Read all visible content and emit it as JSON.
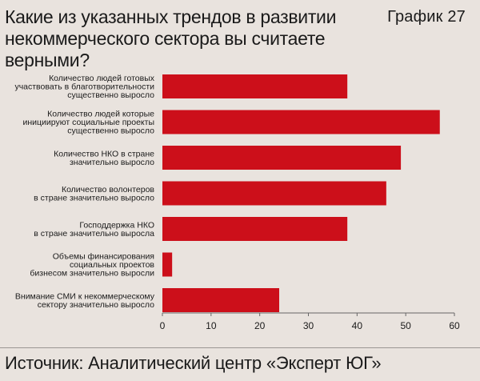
{
  "header": {
    "title_line1": "Какие из указанных трендов в развитии",
    "title_line2": "некоммерческого сектора вы считаете верными?",
    "chart_number": "График 27"
  },
  "footer": {
    "source": "Источник: Аналитический центр «Эксперт ЮГ»"
  },
  "chart_data": {
    "type": "bar",
    "orientation": "horizontal",
    "categories": [
      [
        "Количество людей готовых",
        "участвовать в благотворительности",
        "существенно выросло"
      ],
      [
        "Количество людей которые",
        "инициируют социальные проекты",
        "существенно выросло"
      ],
      [
        "Количество НКО в стране",
        "значительно выросло"
      ],
      [
        "Количество волонтеров",
        "в стране значительно выросло"
      ],
      [
        "Господдержка НКО",
        "в стране значительно выросла"
      ],
      [
        "Объемы финансирования",
        "социальных проектов",
        "бизнесом значительно выросли"
      ],
      [
        "Внимание СМИ к некоммерческому",
        "сектору значительно выросло"
      ]
    ],
    "values": [
      38,
      57,
      49,
      46,
      38,
      2,
      24
    ],
    "xlim": [
      0,
      60
    ],
    "xticks": [
      0,
      10,
      20,
      30,
      40,
      50,
      60
    ],
    "grid": false,
    "bar_color": "#cc0f1a"
  }
}
